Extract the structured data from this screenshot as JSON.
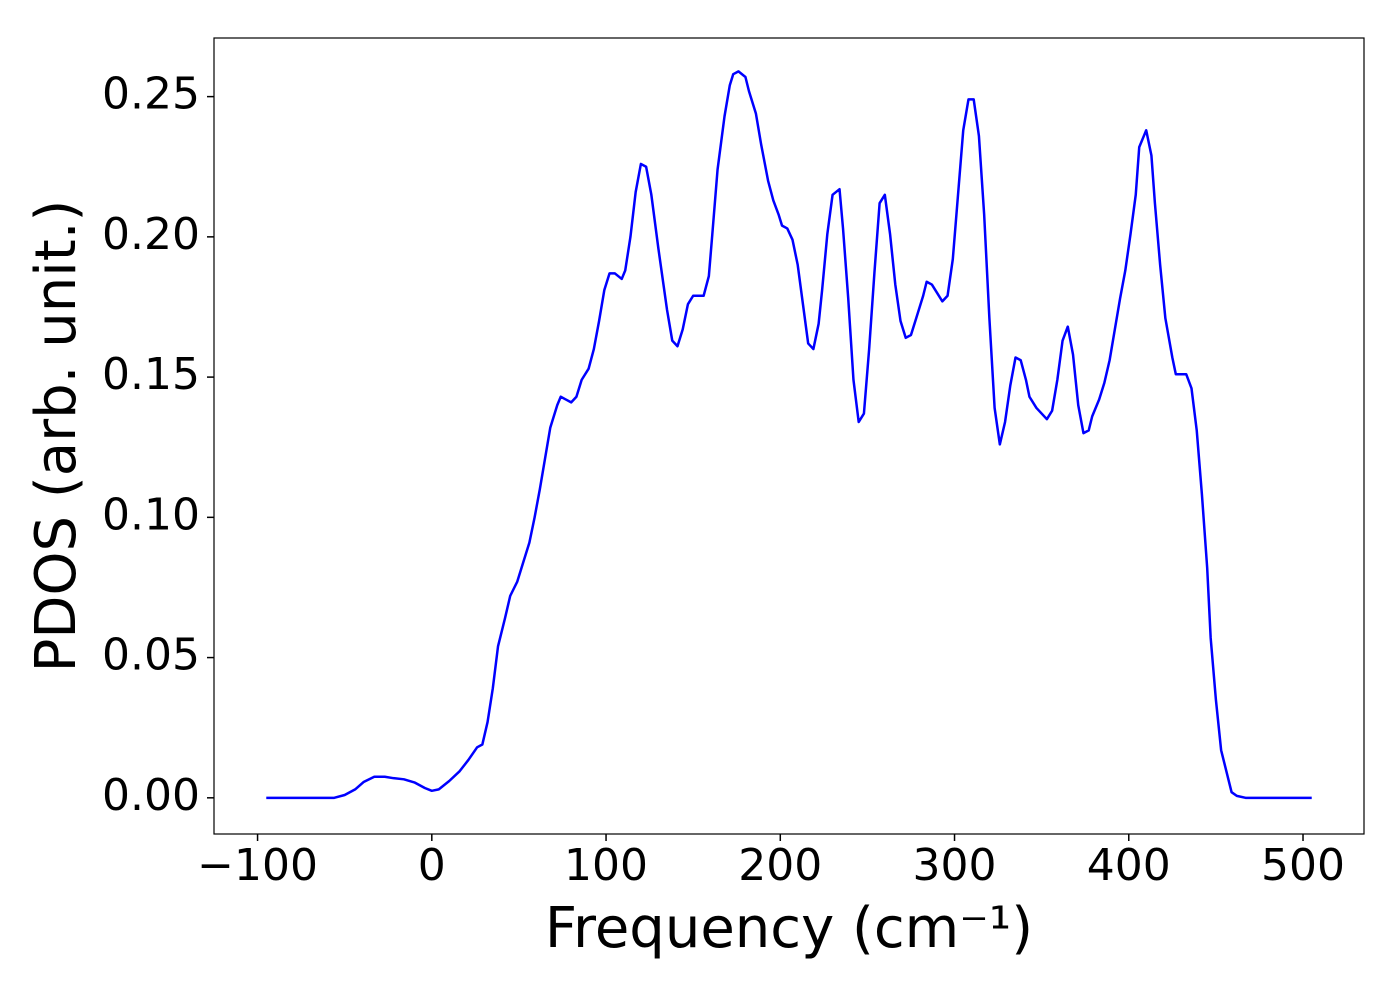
{
  "chart_data": {
    "type": "line",
    "xlabel": "Frequency (cm⁻¹)",
    "ylabel": "PDOS (arb. unit.)",
    "color": "#0000ff",
    "x": [
      -95,
      -56,
      -50,
      -44,
      -39,
      -33,
      -27,
      -22,
      -16,
      -10,
      -4,
      0,
      4,
      10,
      16,
      21,
      26,
      29,
      32,
      35,
      38,
      42,
      45,
      49,
      52,
      56,
      59,
      62,
      65,
      68,
      72,
      74,
      77,
      80,
      83,
      86,
      90,
      93,
      96,
      99,
      102,
      105,
      109,
      111,
      114,
      117,
      120,
      123,
      126,
      130,
      135,
      138,
      141,
      144,
      147,
      150,
      153,
      156,
      159,
      161,
      164,
      168,
      171,
      173,
      176,
      180,
      182,
      186,
      189,
      193,
      196,
      199,
      201,
      204,
      207,
      210,
      213,
      216,
      219,
      222,
      224,
      227,
      230,
      234,
      236,
      239,
      242,
      245,
      248,
      251,
      254,
      257,
      260,
      263,
      266,
      269,
      272,
      275,
      278,
      282,
      284,
      287,
      290,
      293,
      296,
      299,
      302,
      305,
      308,
      311,
      314,
      317,
      320,
      323,
      326,
      329,
      332,
      335,
      338,
      341,
      343,
      347,
      350,
      353,
      356,
      359,
      362,
      365,
      368,
      371,
      374,
      377,
      379,
      383,
      386,
      389,
      392,
      395,
      398,
      401,
      404,
      406,
      410,
      413,
      415,
      418,
      421,
      425,
      427,
      430,
      433,
      436,
      439,
      442,
      445,
      447,
      450,
      453,
      457,
      459,
      462,
      467,
      505
    ],
    "values": [
      0,
      0,
      0.001,
      0.003,
      0.0057,
      0.0075,
      0.0075,
      0.007,
      0.0066,
      0.0055,
      0.0035,
      0.0025,
      0.003,
      0.006,
      0.0095,
      0.0135,
      0.018,
      0.019,
      0.027,
      0.039,
      0.054,
      0.064,
      0.072,
      0.077,
      0.083,
      0.091,
      0.1,
      0.11,
      0.121,
      0.132,
      0.14,
      0.143,
      0.142,
      0.141,
      0.143,
      0.149,
      0.153,
      0.16,
      0.17,
      0.181,
      0.187,
      0.187,
      0.185,
      0.188,
      0.2,
      0.216,
      0.226,
      0.225,
      0.215,
      0.196,
      0.174,
      0.163,
      0.161,
      0.167,
      0.176,
      0.179,
      0.179,
      0.179,
      0.186,
      0.201,
      0.224,
      0.243,
      0.254,
      0.258,
      0.259,
      0.257,
      0.252,
      0.244,
      0.233,
      0.22,
      0.213,
      0.208,
      0.204,
      0.203,
      0.199,
      0.19,
      0.176,
      0.162,
      0.16,
      0.169,
      0.181,
      0.201,
      0.215,
      0.217,
      0.203,
      0.178,
      0.149,
      0.134,
      0.137,
      0.16,
      0.187,
      0.212,
      0.215,
      0.201,
      0.183,
      0.17,
      0.164,
      0.165,
      0.171,
      0.179,
      0.184,
      0.183,
      0.18,
      0.177,
      0.179,
      0.192,
      0.215,
      0.238,
      0.249,
      0.249,
      0.236,
      0.208,
      0.171,
      0.139,
      0.126,
      0.134,
      0.147,
      0.157,
      0.156,
      0.149,
      0.143,
      0.139,
      0.137,
      0.135,
      0.138,
      0.149,
      0.163,
      0.168,
      0.158,
      0.14,
      0.13,
      0.131,
      0.136,
      0.142,
      0.148,
      0.156,
      0.167,
      0.178,
      0.188,
      0.201,
      0.215,
      0.232,
      0.238,
      0.229,
      0.212,
      0.19,
      0.171,
      0.157,
      0.151,
      0.151,
      0.151,
      0.146,
      0.131,
      0.108,
      0.082,
      0.057,
      0.035,
      0.017,
      0.007,
      0.002,
      0.0007,
      0,
      0
    ],
    "xlim": [
      -125,
      535
    ],
    "xticks": [
      {
        "value": -100,
        "label": "−100"
      },
      0,
      100,
      200,
      300,
      400,
      500
    ],
    "ylim": [
      -0.0129,
      0.2709
    ],
    "yticks": [
      {
        "value": 0,
        "label": "0.00"
      },
      {
        "value": 0.05,
        "label": "0.05"
      },
      {
        "value": 0.1,
        "label": "0.10"
      },
      {
        "value": 0.15,
        "label": "0.15"
      },
      {
        "value": 0.2,
        "label": "0.20"
      },
      {
        "value": 0.25,
        "label": "0.25"
      }
    ],
    "grid": false
  }
}
